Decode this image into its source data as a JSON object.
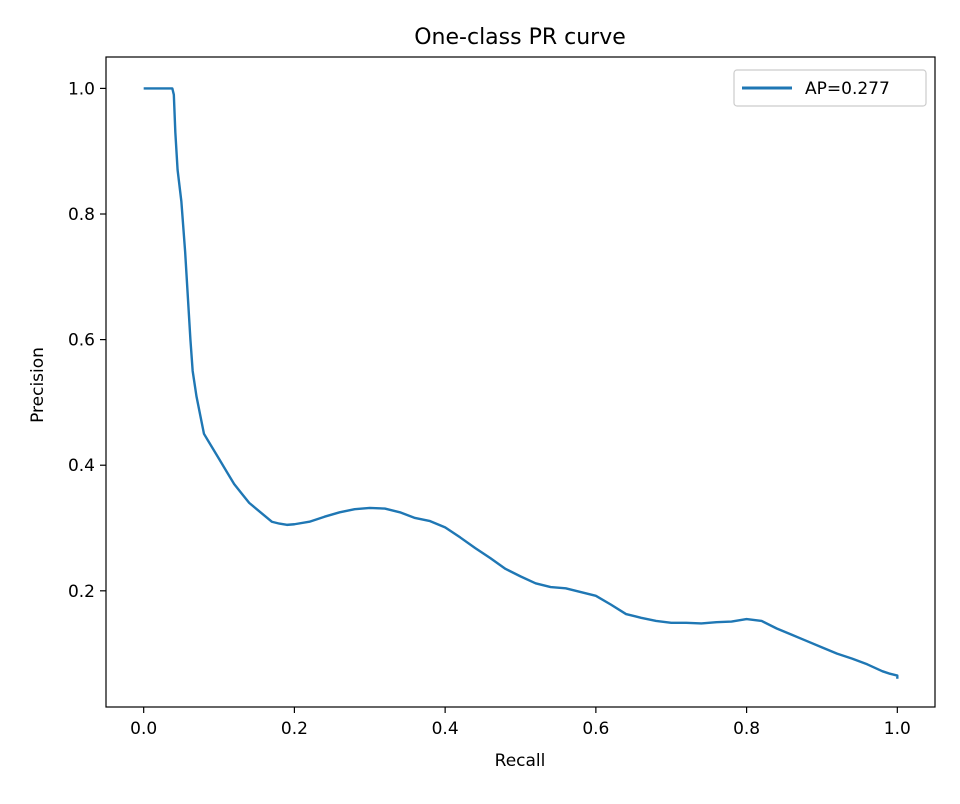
{
  "chart_data": {
    "type": "line",
    "title": "One-class PR curve",
    "xlabel": "Recall",
    "ylabel": "Precision",
    "xlim": [
      -0.05,
      1.05
    ],
    "ylim": [
      0.015,
      1.05
    ],
    "xticks": [
      0.0,
      0.2,
      0.4,
      0.6,
      0.8,
      1.0
    ],
    "xtick_labels": [
      "0.0",
      "0.2",
      "0.4",
      "0.6",
      "0.8",
      "1.0"
    ],
    "yticks": [
      0.2,
      0.4,
      0.6,
      0.8,
      1.0
    ],
    "ytick_labels": [
      "0.2",
      "0.4",
      "0.6",
      "0.8",
      "1.0"
    ],
    "grid": false,
    "legend_position": "top-right",
    "series": [
      {
        "name": "AP=0.277",
        "color": "#1f77b4",
        "x": [
          0.0,
          0.01,
          0.02,
          0.03,
          0.035,
          0.038,
          0.04,
          0.042,
          0.045,
          0.05,
          0.055,
          0.06,
          0.062,
          0.065,
          0.07,
          0.075,
          0.08,
          0.085,
          0.09,
          0.1,
          0.11,
          0.12,
          0.13,
          0.14,
          0.15,
          0.16,
          0.17,
          0.18,
          0.19,
          0.2,
          0.22,
          0.24,
          0.26,
          0.28,
          0.3,
          0.32,
          0.34,
          0.36,
          0.38,
          0.4,
          0.42,
          0.44,
          0.46,
          0.48,
          0.5,
          0.52,
          0.54,
          0.56,
          0.58,
          0.6,
          0.62,
          0.64,
          0.66,
          0.68,
          0.7,
          0.72,
          0.74,
          0.76,
          0.78,
          0.8,
          0.82,
          0.84,
          0.86,
          0.88,
          0.9,
          0.92,
          0.94,
          0.96,
          0.98,
          0.99,
          1.0,
          1.0
        ],
        "y": [
          1.0,
          1.0,
          1.0,
          1.0,
          1.0,
          1.0,
          0.99,
          0.93,
          0.87,
          0.82,
          0.74,
          0.64,
          0.6,
          0.55,
          0.51,
          0.48,
          0.45,
          0.44,
          0.43,
          0.41,
          0.39,
          0.37,
          0.355,
          0.34,
          0.33,
          0.32,
          0.31,
          0.307,
          0.305,
          0.306,
          0.31,
          0.318,
          0.325,
          0.33,
          0.332,
          0.331,
          0.325,
          0.316,
          0.311,
          0.301,
          0.285,
          0.268,
          0.252,
          0.235,
          0.223,
          0.212,
          0.206,
          0.204,
          0.198,
          0.192,
          0.178,
          0.163,
          0.157,
          0.152,
          0.149,
          0.149,
          0.148,
          0.15,
          0.151,
          0.155,
          0.152,
          0.14,
          0.13,
          0.12,
          0.11,
          0.1,
          0.092,
          0.083,
          0.072,
          0.068,
          0.065,
          0.06
        ]
      }
    ]
  }
}
